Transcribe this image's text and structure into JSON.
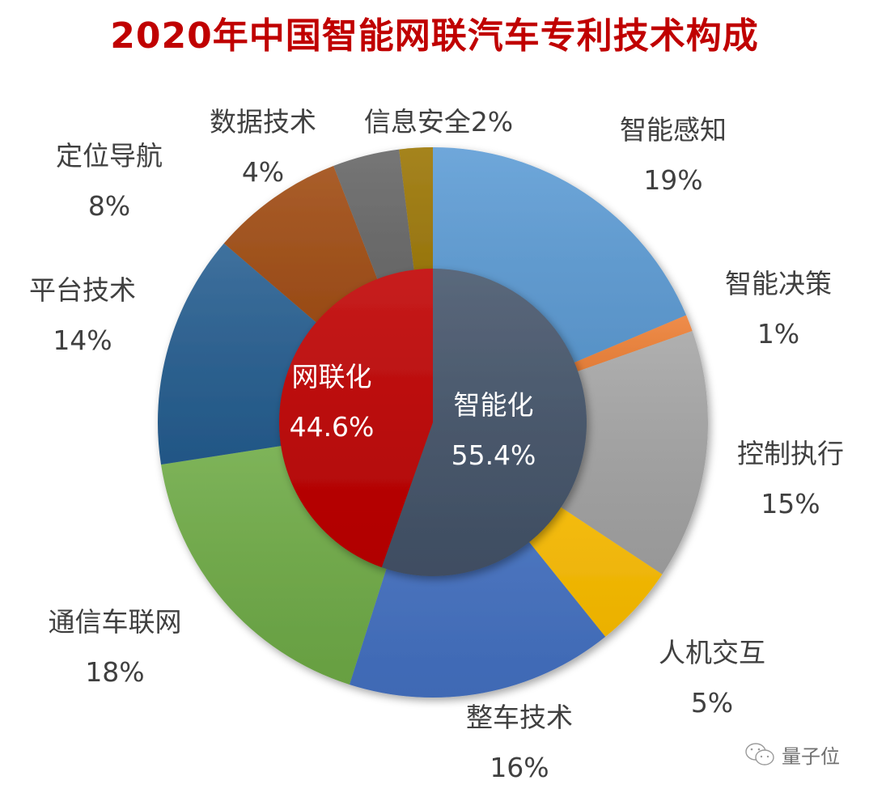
{
  "chart_data": {
    "type": "pie",
    "subtype": "nested-donut",
    "title": "2020年中国智能网联汽车专利技术构成",
    "inner_ring": [
      {
        "label": "智能化",
        "value": 55.4,
        "display": "55.4%",
        "color": "#44546a"
      },
      {
        "label": "网联化",
        "value": 44.6,
        "display": "44.6%",
        "color": "#c00000"
      }
    ],
    "outer_ring": [
      {
        "label": "智能感知",
        "value": 19,
        "display": "19%",
        "color": "#5b9bd5",
        "group": "智能化"
      },
      {
        "label": "智能决策",
        "value": 1,
        "display": "1%",
        "color": "#ed7d31",
        "group": "智能化"
      },
      {
        "label": "控制执行",
        "value": 15,
        "display": "15%",
        "color": "#a5a5a5",
        "group": "智能化"
      },
      {
        "label": "人机交互",
        "value": 5,
        "display": "5%",
        "color": "#ffc000",
        "group": "智能化"
      },
      {
        "label": "整车技术",
        "value": 16,
        "display": "16%",
        "color": "#4472c4",
        "group": "智能化"
      },
      {
        "label": "通信车联网",
        "value": 18,
        "display": "18%",
        "color": "#70ad47",
        "group": "网联化"
      },
      {
        "label": "平台技术",
        "value": 14,
        "display": "14%",
        "color": "#255e91",
        "group": "网联化"
      },
      {
        "label": "定位导航",
        "value": 8,
        "display": "8%",
        "color": "#9e480e",
        "group": "网联化"
      },
      {
        "label": "数据技术",
        "value": 4,
        "display": "4%",
        "color": "#636363",
        "group": "网联化"
      },
      {
        "label": "信息安全",
        "value": 2,
        "display": "2%",
        "color": "#997300",
        "group": "网联化"
      }
    ],
    "start_angle": "12 o'clock, clockwise",
    "legend": "none (data labels on slices)"
  },
  "labels": {
    "smart_sense": {
      "name": "智能感知",
      "pct": "19%"
    },
    "smart_decision": {
      "name": "智能决策",
      "pct": "1%"
    },
    "control": {
      "name": "控制执行",
      "pct": "15%"
    },
    "hmi": {
      "name": "人机交互",
      "pct": "5%"
    },
    "vehicle": {
      "name": "整车技术",
      "pct": "16%"
    },
    "v2x": {
      "name": "通信车联网",
      "pct": "18%"
    },
    "platform": {
      "name": "平台技术",
      "pct": "14%"
    },
    "navigation": {
      "name": "定位导航",
      "pct": "8%"
    },
    "data": {
      "name": "数据技术",
      "pct": "4%"
    },
    "security": {
      "name": "信息安全2%"
    },
    "inner_smart": {
      "name": "智能化",
      "pct": "55.4%"
    },
    "inner_net": {
      "name": "网联化",
      "pct": "44.6%"
    }
  },
  "watermark": {
    "text": "量子位",
    "icon": "wechat-icon"
  }
}
